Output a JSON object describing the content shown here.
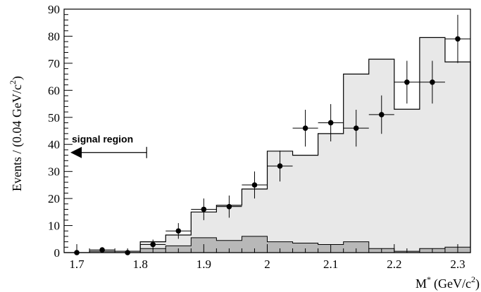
{
  "chart_data": {
    "type": "histogram",
    "title": "",
    "xlabel_parts": {
      "main": "M",
      "sup": "*",
      "unit": "(GeV/c",
      "unit_sup": "2",
      "close": ")"
    },
    "ylabel_parts": {
      "main": "Events / (0.04 GeV/c",
      "sup": "2",
      "close": ")"
    },
    "xlim": [
      1.68,
      2.32
    ],
    "ylim": [
      0,
      90
    ],
    "xticks": [
      1.7,
      1.8,
      1.9,
      2.0,
      2.1,
      2.2,
      2.3
    ],
    "xtick_labels": [
      "1.7",
      "1.8",
      "1.9",
      "2",
      "2.1",
      "2.2",
      "2.3"
    ],
    "yticks": [
      0,
      10,
      20,
      30,
      40,
      50,
      60,
      70,
      80,
      90
    ],
    "ytick_labels": [
      "0",
      "10",
      "20",
      "30",
      "40",
      "50",
      "60",
      "70",
      "80",
      "90"
    ],
    "bin_edges": [
      1.68,
      1.72,
      1.76,
      1.8,
      1.84,
      1.88,
      1.92,
      1.96,
      2.0,
      2.04,
      2.08,
      2.12,
      2.16,
      2.2,
      2.24,
      2.28,
      2.32
    ],
    "series": [
      {
        "kind": "total_histogram",
        "fill": "#e8e8e8",
        "values": [
          0,
          0.5,
          0.5,
          4,
          6.5,
          15,
          17.5,
          23.5,
          37.5,
          36,
          44,
          66,
          71.5,
          53,
          79.5,
          70.5
        ]
      },
      {
        "kind": "background_histogram",
        "fill": "#b8b8b8",
        "values": [
          0,
          0,
          0,
          1.5,
          2.5,
          5.5,
          4.5,
          6,
          4,
          3.5,
          3,
          4,
          1.5,
          0.5,
          1.5,
          2
        ]
      },
      {
        "kind": "data_points",
        "x": [
          1.7,
          1.74,
          1.78,
          1.82,
          1.86,
          1.9,
          1.94,
          1.98,
          2.02,
          2.06,
          2.1,
          2.14,
          2.18,
          2.22,
          2.26,
          2.3
        ],
        "y": [
          0,
          1,
          0,
          3,
          8,
          16,
          17,
          25,
          32,
          46,
          48,
          46,
          51,
          63,
          63,
          79
        ],
        "yerr": [
          0.6,
          1.0,
          0.6,
          1.8,
          2.9,
          4.0,
          4.1,
          5.0,
          5.7,
          6.8,
          6.9,
          6.8,
          7.1,
          7.9,
          7.9,
          8.9
        ],
        "xerr": 0.02
      }
    ],
    "annotation": {
      "text": "signal region",
      "arrow_from": 1.81,
      "arrow_to": 1.69,
      "arrow_y": 37,
      "text_y": 42
    }
  }
}
